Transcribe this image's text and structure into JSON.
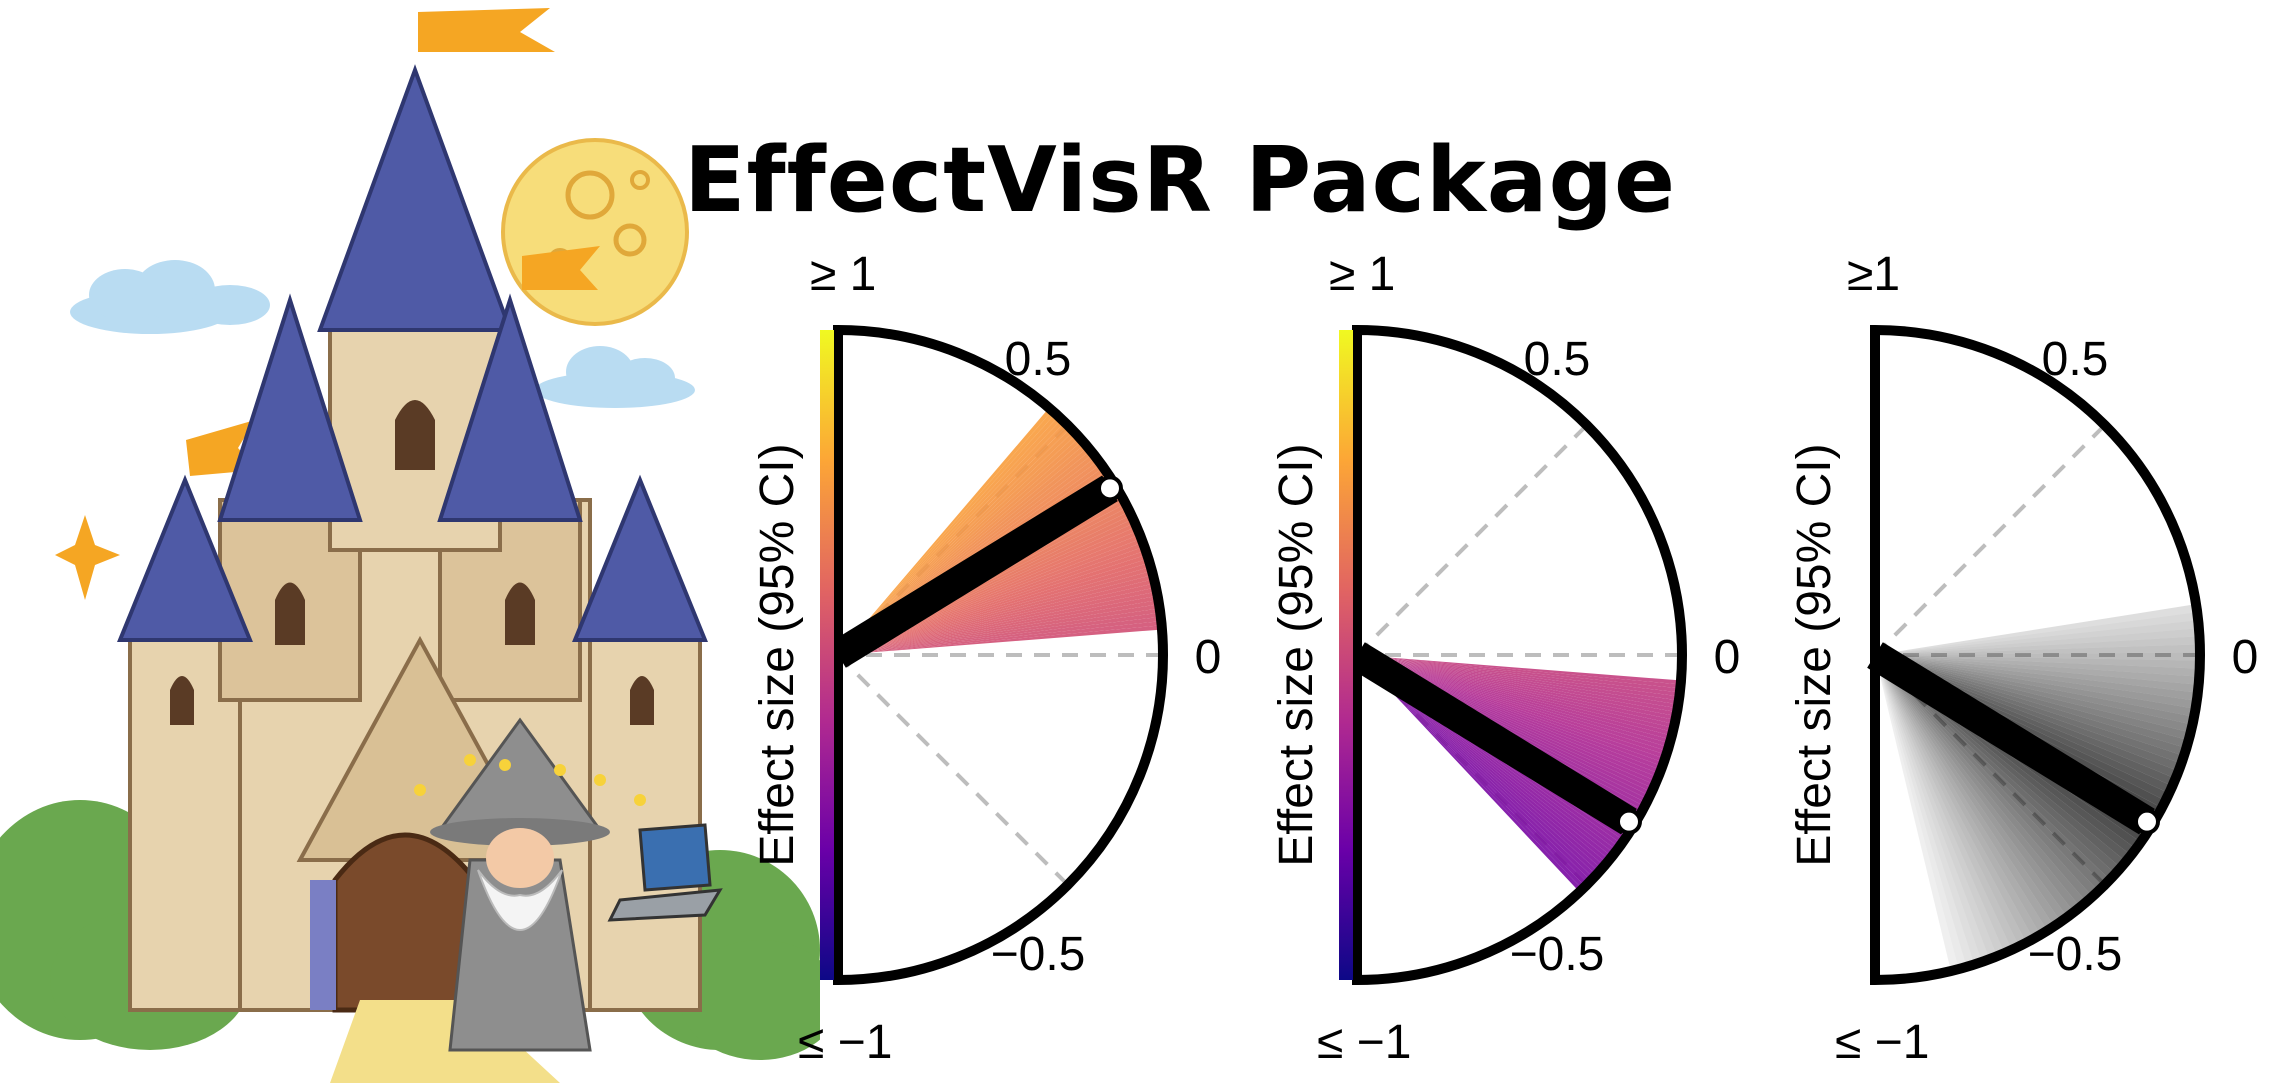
{
  "title": "EffectVisR Package",
  "illustration": {
    "description_icons": [
      "castle-icon",
      "moon-icon",
      "cloud-icon",
      "wizard-icon",
      "laptop-icon",
      "flag-icon",
      "sparkle-icon"
    ],
    "colors": {
      "roof": "#4f5aa6",
      "stone": "#e7d3ae",
      "moon": "#f7dd7a",
      "cloud": "#b9dcf2",
      "foliage": "#6aa84f",
      "door": "#7a4a2b"
    }
  },
  "chart_data": [
    {
      "type": "semicircle-effect",
      "ylabel": "Effect size (95% CI)",
      "ticks": {
        "top": "≥ 1",
        "upper": "0.5",
        "middle": "0",
        "lower": "−0.5",
        "bottom": "≤ −1"
      },
      "effect": 0.35,
      "ci_lower": 0.05,
      "ci_upper": 0.55,
      "fill": "plasma-gradient",
      "colorbar": true
    },
    {
      "type": "semicircle-effect",
      "ylabel": "Effect size (95% CI)",
      "ticks": {
        "top": "≥ 1",
        "upper": "0.5",
        "middle": "0",
        "lower": "−0.5",
        "bottom": "≤ −1"
      },
      "effect": -0.35,
      "ci_lower": -0.52,
      "ci_upper": -0.05,
      "fill": "plasma-gradient",
      "colorbar": true
    },
    {
      "type": "semicircle-effect",
      "ylabel": "Effect size (95% CI)",
      "ticks": {
        "top": "≥1",
        "upper": "0.5",
        "middle": "0",
        "lower": "−0.5",
        "bottom": "≤ −1"
      },
      "effect": -0.35,
      "ci_lower": -0.85,
      "ci_upper": 0.1,
      "fill": "grey-density",
      "colorbar": false
    }
  ]
}
